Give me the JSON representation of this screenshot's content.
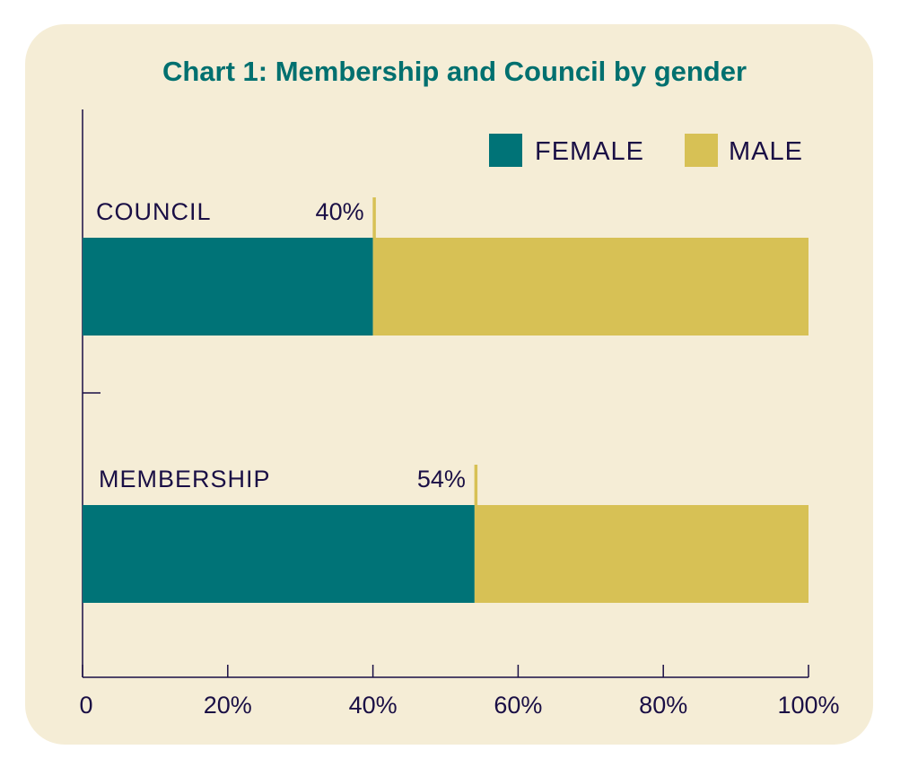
{
  "chart_data": {
    "type": "bar",
    "orientation": "horizontal",
    "stacked": true,
    "title": "Chart 1: Membership and Council by gender",
    "categories": [
      "COUNCIL",
      "MEMBERSHIP"
    ],
    "series": [
      {
        "name": "FEMALE",
        "values": [
          40,
          54
        ],
        "color": "#007377"
      },
      {
        "name": "MALE",
        "values": [
          60,
          46
        ],
        "color": "#d7c155"
      }
    ],
    "data_labels": [
      "40%",
      "54%"
    ],
    "xlim": [
      0,
      100
    ],
    "xticks": [
      0,
      20,
      40,
      60,
      80,
      100
    ],
    "xtick_labels": [
      "0",
      "20%",
      "40%",
      "60%",
      "80%",
      "100%"
    ],
    "legend_position": "top-right",
    "grid": false,
    "colors": {
      "background": "#f5edd6",
      "text": "#1a0f45",
      "title": "#00706f"
    }
  }
}
